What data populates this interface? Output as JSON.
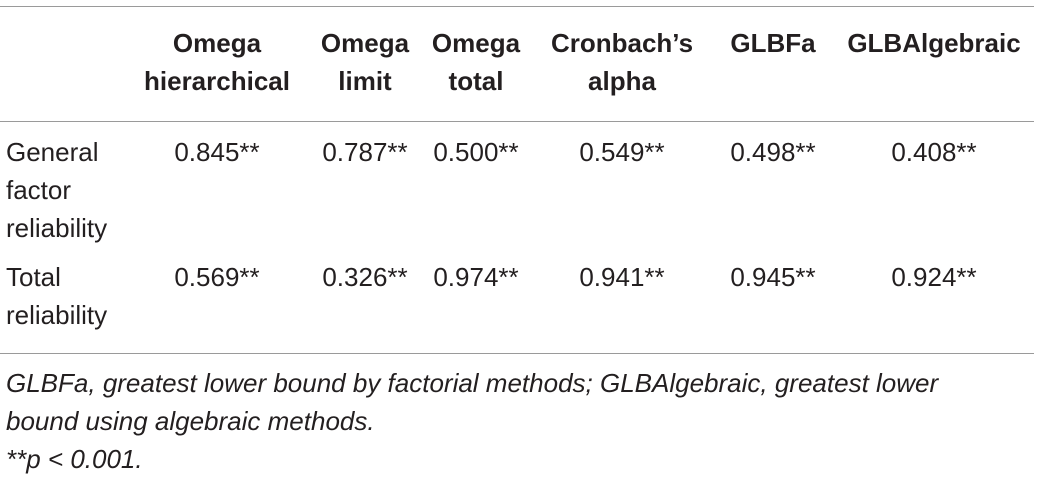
{
  "table": {
    "columns": [
      "Omega hierarchical",
      "Omega limit",
      "Omega total",
      "Cronbach’s alpha",
      "GLBFa",
      "GLBAlgebraic"
    ],
    "header_lines": [
      [
        "Omega",
        "hierarchical"
      ],
      [
        "Omega",
        "limit"
      ],
      [
        "Omega",
        "total"
      ],
      [
        "Cronbach’s",
        "alpha"
      ],
      [
        "GLBFa"
      ],
      [
        "GLBAlgebraic"
      ]
    ],
    "rows": [
      {
        "label_lines": [
          "General",
          "factor",
          "reliability"
        ],
        "values": [
          "0.845**",
          "0.787**",
          "0.500**",
          "0.549**",
          "0.498**",
          "0.408**"
        ]
      },
      {
        "label_lines": [
          "Total",
          "reliability"
        ],
        "values": [
          "0.569**",
          "0.326**",
          "0.974**",
          "0.941**",
          "0.945**",
          "0.924**"
        ]
      }
    ]
  },
  "footnotes": {
    "abbrev_line1": "GLBFa, greatest lower bound by factorial methods; GLBAlgebraic, greatest lower",
    "abbrev_line2": "bound using algebraic methods.",
    "significance": "**p < 0.001."
  }
}
